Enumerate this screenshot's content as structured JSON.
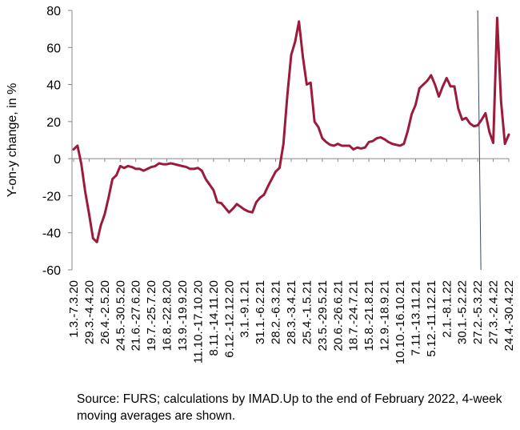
{
  "chart_data": {
    "type": "line",
    "ylabel": "Y-on-y change, in %",
    "ylim": [
      -60,
      80
    ],
    "yticks": [
      -60,
      -40,
      -20,
      0,
      20,
      40,
      60,
      80
    ],
    "grid": false,
    "xtick_labels": [
      "1.3.-7.3.20",
      "29.3.-4.4.20",
      "26.4.-2.5.20",
      "24.5.-30.5.20",
      "21.6.-27.6.20",
      "19.7.-25.7.20",
      "16.8.-22.8.20",
      "13.9.-19.9.20",
      "11.10.-17.10.20",
      "8.11.-14.11.20",
      "6.12.-12.12.20",
      "3.1.-9.1.21",
      "31.1.-6.2.21",
      "28.2.-6.3.21",
      "28.3.-3.4.21",
      "25.4.-1.5.21",
      "23.5.-29.5.21",
      "20.6.-26.6.21",
      "18.7.-24.7.21",
      "15.8.-21.8.21",
      "12.9.-18.9.21",
      "10.10.-16.10.21",
      "7.11.-13.11.21",
      "5.12.-11.12.21",
      "2.1.-8.1.22",
      "30.1.-5.2.22",
      "27.2.-5.3.22",
      "27.3.-2.4.22",
      "24.4.-30.4.22"
    ],
    "series": [
      {
        "color": "#9c1a3a",
        "values": [
          5,
          7,
          -3,
          -18,
          -30,
          -43,
          -45,
          -36,
          -30,
          -21,
          -11,
          -9,
          -4,
          -5,
          -4,
          -4.5,
          -5.5,
          -5.5,
          -6.5,
          -5.5,
          -4.5,
          -4,
          -2.5,
          -3,
          -3,
          -2.5,
          -3,
          -3.5,
          -4,
          -4.5,
          -5.5,
          -5.5,
          -5,
          -6.5,
          -11,
          -14,
          -17,
          -23.5,
          -24,
          -26.5,
          -29,
          -27,
          -24.5,
          -26,
          -27.5,
          -28.5,
          -29,
          -23.5,
          -21,
          -19.5,
          -15,
          -11,
          -7,
          -5,
          8,
          34,
          56,
          63,
          74,
          55,
          40,
          41,
          20,
          17,
          11,
          9,
          7.5,
          7,
          8,
          7,
          7,
          7,
          5,
          6,
          5.5,
          6,
          9,
          9.5,
          11,
          11.5,
          10.5,
          9,
          8,
          7.5,
          7,
          8,
          15,
          24,
          29,
          38,
          40,
          42,
          45,
          40,
          33.5,
          39,
          43.5,
          39,
          39,
          27,
          21,
          22,
          19,
          17.5,
          18,
          21,
          24.5,
          14.5,
          8.5,
          76,
          31,
          8,
          13
        ]
      }
    ],
    "vertical_line_at_tick": "27.2.-5.3.22"
  },
  "footnote": "Source: FURS; calculations by IMAD.Up to the end of February 2022, 4-week moving averages are shown."
}
